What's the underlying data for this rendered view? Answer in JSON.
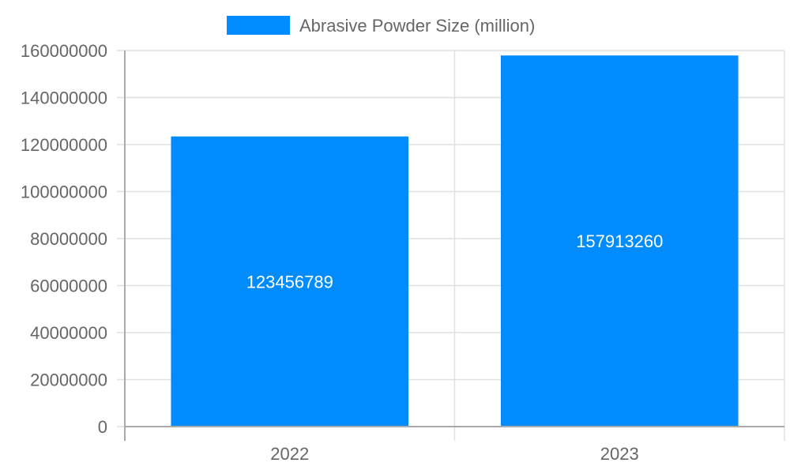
{
  "chart_data": {
    "type": "bar",
    "categories": [
      "2022",
      "2023"
    ],
    "series": [
      {
        "name": "Abrasive Powder Size (million)",
        "values": [
          123456789,
          157913260
        ],
        "color": "#008CFF"
      }
    ],
    "data_labels": [
      "123456789",
      "157913260"
    ],
    "y_ticks": [
      0,
      20000000,
      40000000,
      60000000,
      80000000,
      100000000,
      120000000,
      140000000,
      160000000
    ],
    "ylim": [
      0,
      160000000
    ],
    "grid": true,
    "legend_position": "top",
    "legend_label": "Abrasive Powder Size (million)"
  }
}
